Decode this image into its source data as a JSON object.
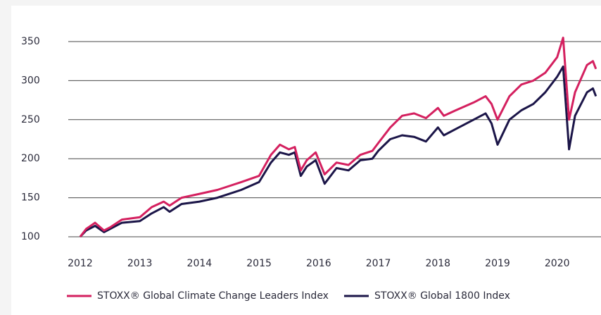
{
  "chart_data": {
    "type": "line",
    "x": [
      2012.0,
      2012.1,
      2012.25,
      2012.4,
      2012.5,
      2012.7,
      2013.0,
      2013.2,
      2013.4,
      2013.5,
      2013.7,
      2014.0,
      2014.3,
      2014.5,
      2014.7,
      2015.0,
      2015.2,
      2015.35,
      2015.5,
      2015.6,
      2015.7,
      2015.8,
      2015.95,
      2016.1,
      2016.3,
      2016.5,
      2016.7,
      2016.9,
      2017.0,
      2017.2,
      2017.4,
      2017.6,
      2017.8,
      2018.0,
      2018.1,
      2018.3,
      2018.6,
      2018.8,
      2018.9,
      2019.0,
      2019.2,
      2019.4,
      2019.6,
      2019.8,
      2020.0,
      2020.1,
      2020.2,
      2020.3,
      2020.5,
      2020.6,
      2020.65
    ],
    "series": [
      {
        "name": "STOXX® Global Climate Change Leaders Index",
        "color": "#d4205f",
        "values": [
          100,
          110,
          118,
          108,
          112,
          122,
          125,
          138,
          145,
          140,
          150,
          155,
          160,
          165,
          170,
          178,
          205,
          218,
          212,
          215,
          185,
          198,
          208,
          180,
          195,
          192,
          205,
          210,
          220,
          240,
          255,
          258,
          252,
          265,
          255,
          262,
          272,
          280,
          270,
          250,
          280,
          295,
          300,
          310,
          330,
          355,
          250,
          285,
          320,
          325,
          315
        ]
      },
      {
        "name": "STOXX® Global 1800 Index",
        "color": "#1b1548",
        "values": [
          100,
          108,
          114,
          106,
          110,
          118,
          120,
          130,
          138,
          132,
          142,
          145,
          150,
          155,
          160,
          170,
          195,
          208,
          205,
          208,
          178,
          190,
          198,
          168,
          188,
          185,
          198,
          200,
          210,
          225,
          230,
          228,
          222,
          240,
          230,
          238,
          250,
          258,
          245,
          218,
          250,
          262,
          270,
          285,
          305,
          318,
          212,
          255,
          285,
          290,
          280
        ]
      }
    ],
    "xlim": [
      2011.8,
      2020.7
    ],
    "xticks": [
      2012,
      2013,
      2014,
      2015,
      2016,
      2017,
      2018,
      2019,
      2020
    ],
    "ylim": [
      100,
      350
    ],
    "yticks": [
      100,
      150,
      200,
      250,
      300,
      350
    ],
    "grid": true,
    "legend": "bottom"
  }
}
